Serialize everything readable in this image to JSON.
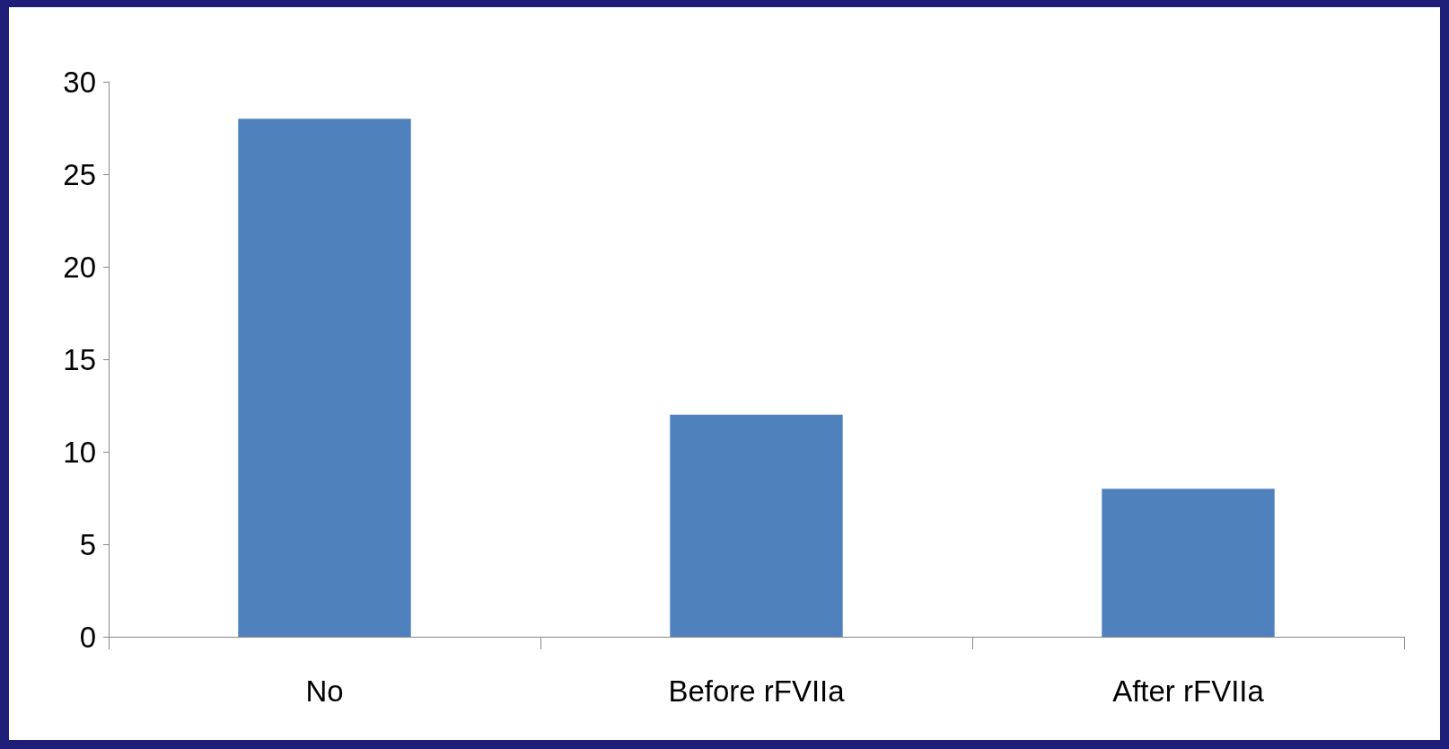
{
  "chart_data": {
    "type": "bar",
    "categories": [
      "No",
      "Before rFVIIa",
      "After rFVIIa"
    ],
    "values": [
      28,
      12,
      8
    ],
    "color": "#4f81bd",
    "ylim": [
      0,
      30
    ],
    "yticks": [
      0,
      5,
      10,
      15,
      20,
      25,
      30
    ],
    "grid": false
  }
}
